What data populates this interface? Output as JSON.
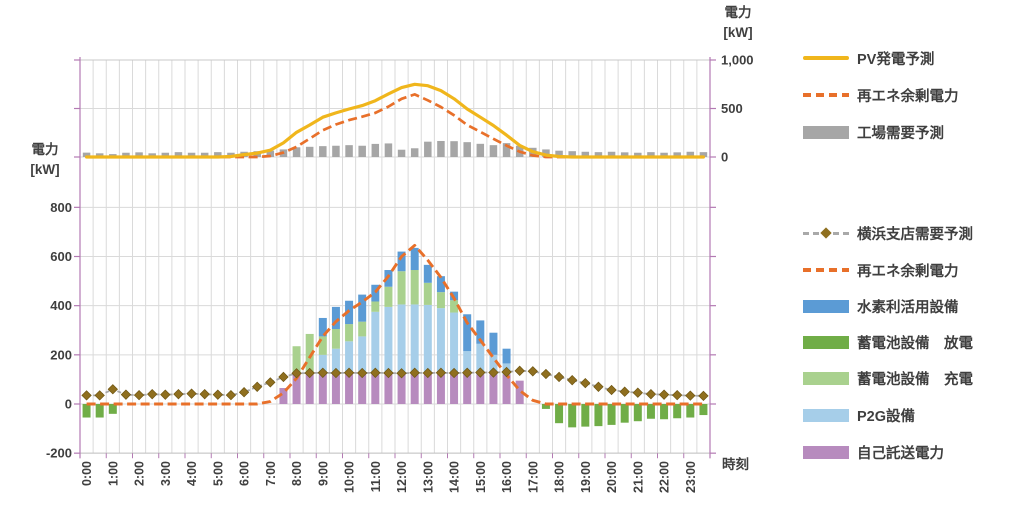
{
  "axes": {
    "left_title": [
      "電力",
      "[kW]"
    ],
    "right_title": [
      "電力",
      "[kW]"
    ],
    "x_title": "時刻",
    "left_ticks": [
      {
        "label": "800",
        "v": 800
      },
      {
        "label": "600",
        "v": 600
      },
      {
        "label": "400",
        "v": 400
      },
      {
        "label": "200",
        "v": 200
      },
      {
        "label": "0",
        "v": 0
      },
      {
        "label": "-200",
        "v": -200
      }
    ],
    "right_ticks": [
      {
        "label": "1,000",
        "v": 1000
      },
      {
        "label": "500",
        "v": 500
      },
      {
        "label": "0",
        "v": 0
      }
    ],
    "x_labels": [
      "0:00",
      "1:00",
      "2:00",
      "3:00",
      "4:00",
      "5:00",
      "6:00",
      "7:00",
      "8:00",
      "9:00",
      "10:00",
      "11:00",
      "12:00",
      "13:00",
      "14:00",
      "15:00",
      "16:00",
      "17:00",
      "18:00",
      "19:00",
      "20:00",
      "21:00",
      "22:00",
      "23:00"
    ]
  },
  "colors": {
    "pv_yellow": "#F0B61C",
    "surplus_orange": "#E8702A",
    "factory_gray": "#A6A6A6",
    "demand_line_gray": "#A9A9A9",
    "demand_marker_olive": "#8F6F1F",
    "hydrogen_blue": "#5B9BD5",
    "discharge_green": "#70AD47",
    "charge_lightgreen": "#A9D18E",
    "p2g_lightblue": "#A6CEE9",
    "self_purple": "#B78BBE",
    "axis_purple": "#B37AB3",
    "gridline": "#DADADA",
    "text": "#3F3F3F"
  },
  "legend": {
    "top": [
      {
        "label": "PV発電予測",
        "swatch": "solid-line",
        "color": "#F0B61C"
      },
      {
        "label": "再エネ余剰電力",
        "swatch": "dashed-line",
        "color": "#E8702A"
      },
      {
        "label": "工場需要予測",
        "swatch": "bar",
        "color": "#A6A6A6"
      }
    ],
    "bottom": [
      {
        "label": "横浜支店需要予測",
        "swatch": "dash-diamond",
        "color": "#A9A9A9",
        "marker_color": "#8F6F1F"
      },
      {
        "label": "再エネ余剰電力",
        "swatch": "dashed-line",
        "color": "#E8702A"
      },
      {
        "label": "水素利活用設備",
        "swatch": "bar",
        "color": "#5B9BD5"
      },
      {
        "label": "蓄電池設備　放電",
        "swatch": "bar",
        "color": "#70AD47"
      },
      {
        "label": "蓄電池設備　充電",
        "swatch": "bar",
        "color": "#A9D18E"
      },
      {
        "label": "P2G設備",
        "swatch": "bar",
        "color": "#A6CEE9"
      },
      {
        "label": "自己託送電力",
        "swatch": "bar",
        "color": "#B78BBE"
      }
    ]
  },
  "chart_data": [
    {
      "type": "combo-top",
      "axis": "right",
      "ylim": [
        0,
        1000
      ],
      "x_interval_minutes": 30,
      "series": [
        {
          "id": "pv-forecast",
          "name": "PV発電予測",
          "type": "line",
          "color": "#F0B61C",
          "values": [
            0,
            0,
            0,
            0,
            0,
            0,
            0,
            0,
            0,
            0,
            0,
            5,
            25,
            40,
            70,
            145,
            255,
            330,
            410,
            455,
            495,
            530,
            580,
            650,
            715,
            750,
            735,
            685,
            600,
            495,
            410,
            325,
            225,
            120,
            55,
            20,
            5,
            0,
            0,
            0,
            0,
            0,
            0,
            0,
            0,
            0,
            0,
            0
          ]
        },
        {
          "id": "renewable-surplus-top",
          "name": "再エネ余剰電力",
          "type": "dashed-line",
          "color": "#E8702A",
          "values": [
            0,
            0,
            0,
            0,
            0,
            0,
            0,
            0,
            0,
            0,
            0,
            0,
            0,
            0,
            10,
            45,
            105,
            190,
            275,
            335,
            380,
            415,
            455,
            520,
            600,
            645,
            585,
            515,
            430,
            330,
            260,
            188,
            118,
            55,
            15,
            0,
            0,
            0,
            0,
            0,
            0,
            0,
            0,
            0,
            0,
            0,
            0,
            0
          ]
        },
        {
          "id": "factory-demand",
          "name": "工場需要予測",
          "type": "bar",
          "color": "#A6A6A6",
          "values": [
            45,
            38,
            30,
            44,
            48,
            38,
            44,
            50,
            44,
            44,
            50,
            44,
            54,
            60,
            65,
            78,
            100,
            105,
            112,
            116,
            122,
            116,
            135,
            140,
            75,
            90,
            158,
            165,
            163,
            153,
            136,
            122,
            143,
            116,
            95,
            78,
            65,
            60,
            54,
            50,
            54,
            48,
            44,
            50,
            44,
            48,
            54,
            50
          ]
        }
      ]
    },
    {
      "type": "combo-bottom",
      "axis": "left",
      "ylim": [
        -200,
        800
      ],
      "x_interval_minutes": 30,
      "series": [
        {
          "id": "yokohama-demand",
          "name": "横浜支店需要予測",
          "type": "dash-diamond-line",
          "color": "#A9A9A9",
          "marker_color": "#8F6F1F",
          "values": [
            35,
            35,
            60,
            38,
            36,
            40,
            38,
            40,
            42,
            40,
            38,
            36,
            48,
            70,
            88,
            110,
            125,
            126,
            127,
            126,
            127,
            126,
            127,
            126,
            125,
            127,
            126,
            127,
            126,
            127,
            128,
            128,
            130,
            135,
            133,
            122,
            110,
            97,
            85,
            70,
            57,
            50,
            46,
            40,
            38,
            36,
            34,
            33
          ]
        },
        {
          "id": "renewable-surplus-bottom",
          "name": "再エネ余剰電力",
          "type": "dashed-line",
          "color": "#E8702A",
          "values": [
            0,
            0,
            0,
            0,
            0,
            0,
            0,
            0,
            0,
            0,
            0,
            0,
            0,
            0,
            10,
            45,
            105,
            190,
            275,
            335,
            380,
            415,
            455,
            520,
            600,
            645,
            585,
            515,
            430,
            330,
            260,
            188,
            118,
            55,
            15,
            0,
            0,
            0,
            0,
            0,
            0,
            0,
            0,
            0,
            0,
            0,
            0,
            0
          ]
        },
        {
          "id": "self-consignment",
          "name": "自己託送電力",
          "type": "stacked-bar",
          "stack_order": 1,
          "color": "#B78BBE",
          "values": [
            0,
            0,
            0,
            0,
            0,
            0,
            0,
            0,
            0,
            0,
            0,
            0,
            0,
            0,
            0,
            65,
            120,
            120,
            120,
            120,
            120,
            120,
            120,
            120,
            120,
            120,
            120,
            120,
            120,
            120,
            120,
            120,
            120,
            95,
            0,
            0,
            0,
            0,
            0,
            0,
            0,
            0,
            0,
            0,
            0,
            0,
            0,
            0
          ]
        },
        {
          "id": "p2g-equipment",
          "name": "P2G設備",
          "type": "stacked-bar",
          "stack_order": 2,
          "color": "#A6CEE9",
          "values": [
            0,
            0,
            0,
            0,
            0,
            0,
            0,
            0,
            0,
            0,
            0,
            0,
            0,
            0,
            0,
            0,
            0,
            0,
            80,
            105,
            135,
            155,
            255,
            275,
            285,
            285,
            283,
            270,
            252,
            95,
            125,
            80,
            45,
            0,
            0,
            0,
            0,
            0,
            0,
            0,
            0,
            0,
            0,
            0,
            0,
            0,
            0,
            0
          ]
        },
        {
          "id": "battery-charge",
          "name": "蓄電池設備　充電",
          "type": "stacked-bar",
          "stack_order": 3,
          "color": "#A9D18E",
          "values": [
            0,
            0,
            0,
            0,
            0,
            0,
            0,
            0,
            0,
            0,
            0,
            0,
            0,
            0,
            0,
            0,
            115,
            165,
            75,
            80,
            70,
            60,
            42,
            82,
            135,
            140,
            90,
            65,
            50,
            0,
            0,
            0,
            0,
            0,
            0,
            0,
            0,
            0,
            0,
            0,
            0,
            0,
            0,
            0,
            0,
            0,
            0,
            0
          ]
        },
        {
          "id": "hydrogen-utilization",
          "name": "水素利活用設備",
          "type": "stacked-bar",
          "stack_order": 4,
          "color": "#5B9BD5",
          "values": [
            0,
            0,
            0,
            0,
            0,
            0,
            0,
            0,
            0,
            0,
            0,
            0,
            0,
            0,
            0,
            0,
            0,
            0,
            75,
            90,
            95,
            110,
            68,
            68,
            80,
            90,
            73,
            65,
            35,
            150,
            95,
            90,
            60,
            0,
            0,
            0,
            0,
            0,
            0,
            0,
            0,
            0,
            0,
            0,
            0,
            0,
            0,
            0
          ]
        },
        {
          "id": "battery-discharge",
          "name": "蓄電池設備　放電",
          "type": "bar",
          "color": "#70AD47",
          "values": [
            -55,
            -55,
            -40,
            0,
            0,
            0,
            0,
            0,
            0,
            0,
            0,
            0,
            0,
            0,
            0,
            0,
            0,
            0,
            0,
            0,
            0,
            0,
            0,
            0,
            0,
            0,
            0,
            0,
            0,
            0,
            0,
            0,
            0,
            0,
            0,
            -20,
            -78,
            -95,
            -92,
            -90,
            -85,
            -76,
            -70,
            -60,
            -62,
            -58,
            -55,
            -45
          ]
        }
      ]
    }
  ]
}
